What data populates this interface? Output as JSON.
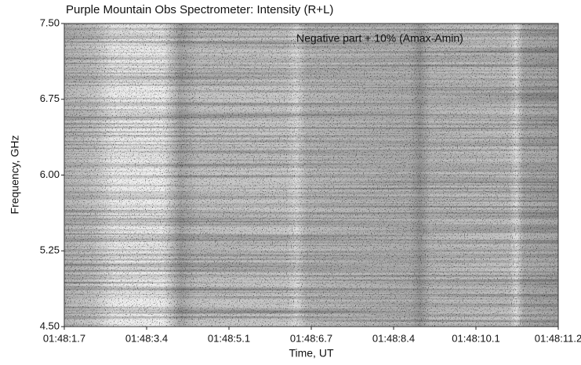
{
  "chart_data": {
    "type": "spectrogram",
    "title": "Purple Mountain Obs Spectrometer: Intensity (R+L)",
    "annotation": "Negative part + 10% (Amax-Amin)",
    "x_label": "Time, UT",
    "y_label": "Frequency, GHz",
    "xticks": [
      "01:48:1.7",
      "01:48:3.4",
      "01:48:5.1",
      "01:48:6.7",
      "01:48:8.4",
      "01:48:10.1",
      "01:48:11.2"
    ],
    "ylim": [
      4.5,
      7.5
    ],
    "yticks": [
      {
        "value": 7.5,
        "label": "7.50"
      },
      {
        "value": 6.75,
        "label": "6.75"
      },
      {
        "value": 6,
        "label": "6.00"
      },
      {
        "value": 5.25,
        "label": "5.25"
      },
      {
        "value": 4.5,
        "label": "4.50"
      }
    ]
  }
}
